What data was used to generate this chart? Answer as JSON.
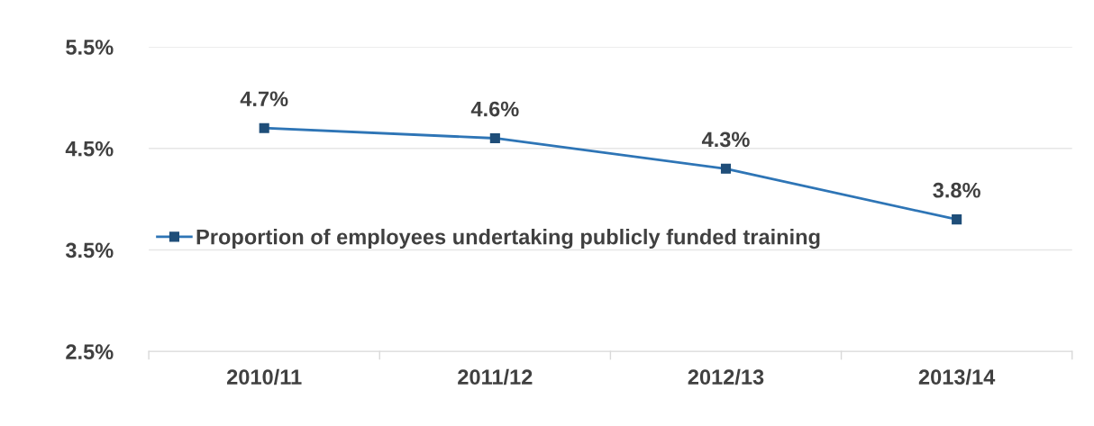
{
  "chart_data": {
    "type": "line",
    "categories": [
      "2010/11",
      "2011/12",
      "2012/13",
      "2013/14"
    ],
    "series": [
      {
        "name": "Proportion of employees undertaking publicly funded training",
        "color": "#2e75b6",
        "values": [
          4.7,
          4.6,
          4.3,
          3.8
        ]
      }
    ],
    "value_labels": [
      "4.7%",
      "4.6%",
      "4.3%",
      "3.8%"
    ],
    "ylim": [
      2.5,
      5.5
    ],
    "yticks": [
      {
        "value": 2.5,
        "label": "2.5%"
      },
      {
        "value": 3.5,
        "label": "3.5%"
      },
      {
        "value": 4.5,
        "label": "4.5%"
      },
      {
        "value": 5.5,
        "label": "5.5%"
      }
    ],
    "grid": "y",
    "legend": "left",
    "marker": "square",
    "line_style": "solid"
  }
}
